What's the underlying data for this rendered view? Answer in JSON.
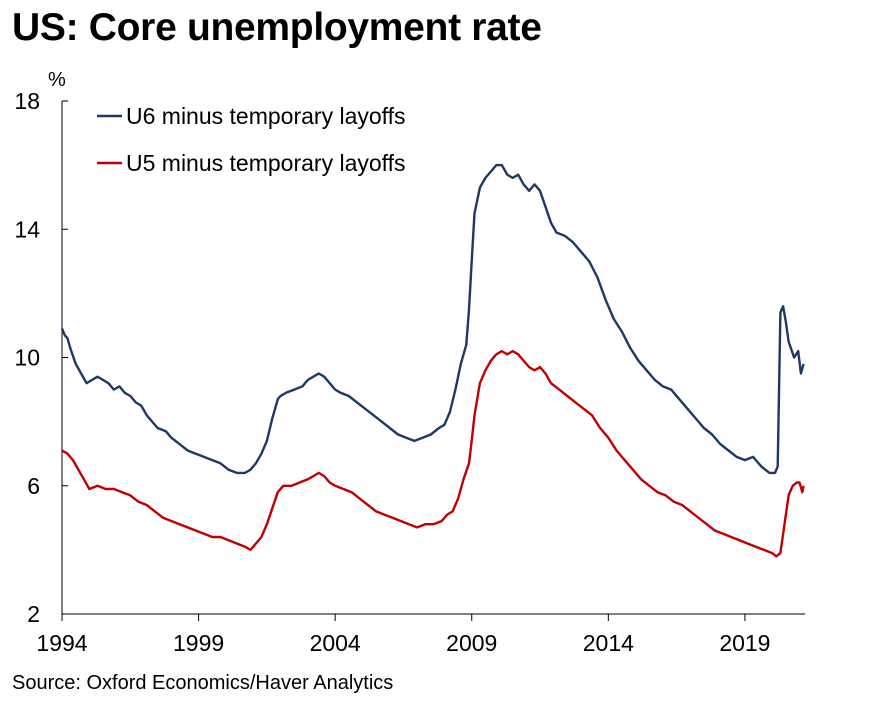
{
  "chart_data": {
    "type": "line",
    "title": "US: Core unemployment rate",
    "ylabel": "%",
    "xlabel": "",
    "ylim": [
      2,
      18
    ],
    "xlim": [
      1994,
      2021.2
    ],
    "yticks": [
      2,
      6,
      10,
      14,
      18
    ],
    "xticks": [
      1994,
      1999,
      2004,
      2009,
      2014,
      2019
    ],
    "grid": false,
    "legend": "top-left",
    "series": [
      {
        "name": "U6 minus temporary layoffs",
        "color": "#1f3864",
        "x": [
          1994.0,
          1994.1,
          1994.2,
          1994.3,
          1994.5,
          1994.7,
          1994.9,
          1995.1,
          1995.3,
          1995.5,
          1995.7,
          1995.9,
          1996.1,
          1996.3,
          1996.5,
          1996.7,
          1996.9,
          1997.1,
          1997.3,
          1997.5,
          1997.8,
          1998.0,
          1998.3,
          1998.6,
          1998.9,
          1999.2,
          1999.5,
          1999.8,
          2000.1,
          2000.4,
          2000.7,
          2000.9,
          2001.1,
          2001.3,
          2001.5,
          2001.7,
          2001.9,
          2002.0,
          2002.2,
          2002.5,
          2002.8,
          2003.0,
          2003.2,
          2003.4,
          2003.6,
          2003.8,
          2004.0,
          2004.2,
          2004.5,
          2004.8,
          2005.1,
          2005.4,
          2005.7,
          2006.0,
          2006.3,
          2006.6,
          2006.9,
          2007.2,
          2007.5,
          2007.8,
          2008.0,
          2008.2,
          2008.4,
          2008.6,
          2008.8,
          2008.9,
          2009.0,
          2009.1,
          2009.3,
          2009.5,
          2009.7,
          2009.9,
          2010.1,
          2010.3,
          2010.5,
          2010.7,
          2010.9,
          2011.1,
          2011.3,
          2011.5,
          2011.7,
          2011.9,
          2012.1,
          2012.4,
          2012.7,
          2013.0,
          2013.3,
          2013.6,
          2013.9,
          2014.2,
          2014.5,
          2014.8,
          2015.1,
          2015.4,
          2015.7,
          2016.0,
          2016.3,
          2016.6,
          2016.9,
          2017.2,
          2017.5,
          2017.8,
          2018.1,
          2018.4,
          2018.7,
          2019.0,
          2019.3,
          2019.6,
          2019.9,
          2020.1,
          2020.2,
          2020.3,
          2020.4,
          2020.5,
          2020.6,
          2020.8,
          2020.95,
          2021.05,
          2021.15
        ],
        "values": [
          10.9,
          10.7,
          10.6,
          10.3,
          9.8,
          9.5,
          9.2,
          9.3,
          9.4,
          9.3,
          9.2,
          9.0,
          9.1,
          8.9,
          8.8,
          8.6,
          8.5,
          8.2,
          8.0,
          7.8,
          7.7,
          7.5,
          7.3,
          7.1,
          7.0,
          6.9,
          6.8,
          6.7,
          6.5,
          6.4,
          6.4,
          6.5,
          6.7,
          7.0,
          7.4,
          8.1,
          8.7,
          8.8,
          8.9,
          9.0,
          9.1,
          9.3,
          9.4,
          9.5,
          9.4,
          9.2,
          9.0,
          8.9,
          8.8,
          8.6,
          8.4,
          8.2,
          8.0,
          7.8,
          7.6,
          7.5,
          7.4,
          7.5,
          7.6,
          7.8,
          7.9,
          8.3,
          9.0,
          9.8,
          10.4,
          11.5,
          13.0,
          14.5,
          15.3,
          15.6,
          15.8,
          16.0,
          16.0,
          15.7,
          15.6,
          15.7,
          15.4,
          15.2,
          15.4,
          15.2,
          14.7,
          14.2,
          13.9,
          13.8,
          13.6,
          13.3,
          13.0,
          12.5,
          11.8,
          11.2,
          10.8,
          10.3,
          9.9,
          9.6,
          9.3,
          9.1,
          9.0,
          8.7,
          8.4,
          8.1,
          7.8,
          7.6,
          7.3,
          7.1,
          6.9,
          6.8,
          6.9,
          6.6,
          6.4,
          6.4,
          6.6,
          11.4,
          11.6,
          11.1,
          10.5,
          10.0,
          10.2,
          9.5,
          9.8
        ]
      },
      {
        "name": "U5 minus temporary layoffs",
        "color": "#c00000",
        "x": [
          1994.0,
          1994.2,
          1994.4,
          1994.6,
          1994.8,
          1995.0,
          1995.3,
          1995.6,
          1995.9,
          1996.2,
          1996.5,
          1996.8,
          1997.1,
          1997.4,
          1997.7,
          1998.0,
          1998.3,
          1998.6,
          1998.9,
          1999.2,
          1999.5,
          1999.8,
          2000.1,
          2000.4,
          2000.7,
          2000.9,
          2001.1,
          2001.3,
          2001.5,
          2001.7,
          2001.9,
          2002.1,
          2002.4,
          2002.7,
          2003.0,
          2003.2,
          2003.4,
          2003.6,
          2003.8,
          2004.0,
          2004.3,
          2004.6,
          2004.9,
          2005.2,
          2005.5,
          2005.8,
          2006.1,
          2006.4,
          2006.7,
          2007.0,
          2007.3,
          2007.6,
          2007.9,
          2008.1,
          2008.3,
          2008.5,
          2008.7,
          2008.9,
          2009.0,
          2009.1,
          2009.3,
          2009.5,
          2009.7,
          2009.9,
          2010.1,
          2010.3,
          2010.5,
          2010.7,
          2010.9,
          2011.1,
          2011.3,
          2011.5,
          2011.7,
          2011.9,
          2012.2,
          2012.5,
          2012.8,
          2013.1,
          2013.4,
          2013.7,
          2014.0,
          2014.3,
          2014.6,
          2014.9,
          2015.2,
          2015.5,
          2015.8,
          2016.1,
          2016.4,
          2016.7,
          2017.0,
          2017.3,
          2017.6,
          2017.9,
          2018.2,
          2018.5,
          2018.8,
          2019.1,
          2019.4,
          2019.7,
          2020.0,
          2020.15,
          2020.3,
          2020.45,
          2020.6,
          2020.75,
          2020.9,
          2021.0,
          2021.1,
          2021.15
        ],
        "values": [
          7.1,
          7.0,
          6.8,
          6.5,
          6.2,
          5.9,
          6.0,
          5.9,
          5.9,
          5.8,
          5.7,
          5.5,
          5.4,
          5.2,
          5.0,
          4.9,
          4.8,
          4.7,
          4.6,
          4.5,
          4.4,
          4.4,
          4.3,
          4.2,
          4.1,
          4.0,
          4.2,
          4.4,
          4.8,
          5.3,
          5.8,
          6.0,
          6.0,
          6.1,
          6.2,
          6.3,
          6.4,
          6.3,
          6.1,
          6.0,
          5.9,
          5.8,
          5.6,
          5.4,
          5.2,
          5.1,
          5.0,
          4.9,
          4.8,
          4.7,
          4.8,
          4.8,
          4.9,
          5.1,
          5.2,
          5.6,
          6.2,
          6.7,
          7.4,
          8.2,
          9.2,
          9.6,
          9.9,
          10.1,
          10.2,
          10.1,
          10.2,
          10.1,
          9.9,
          9.7,
          9.6,
          9.7,
          9.5,
          9.2,
          9.0,
          8.8,
          8.6,
          8.4,
          8.2,
          7.8,
          7.5,
          7.1,
          6.8,
          6.5,
          6.2,
          6.0,
          5.8,
          5.7,
          5.5,
          5.4,
          5.2,
          5.0,
          4.8,
          4.6,
          4.5,
          4.4,
          4.3,
          4.2,
          4.1,
          4.0,
          3.9,
          3.8,
          3.9,
          4.8,
          5.7,
          6.0,
          6.1,
          6.1,
          5.8,
          6.0
        ]
      }
    ]
  },
  "source": "Source: Oxford Economics/Haver Analytics"
}
